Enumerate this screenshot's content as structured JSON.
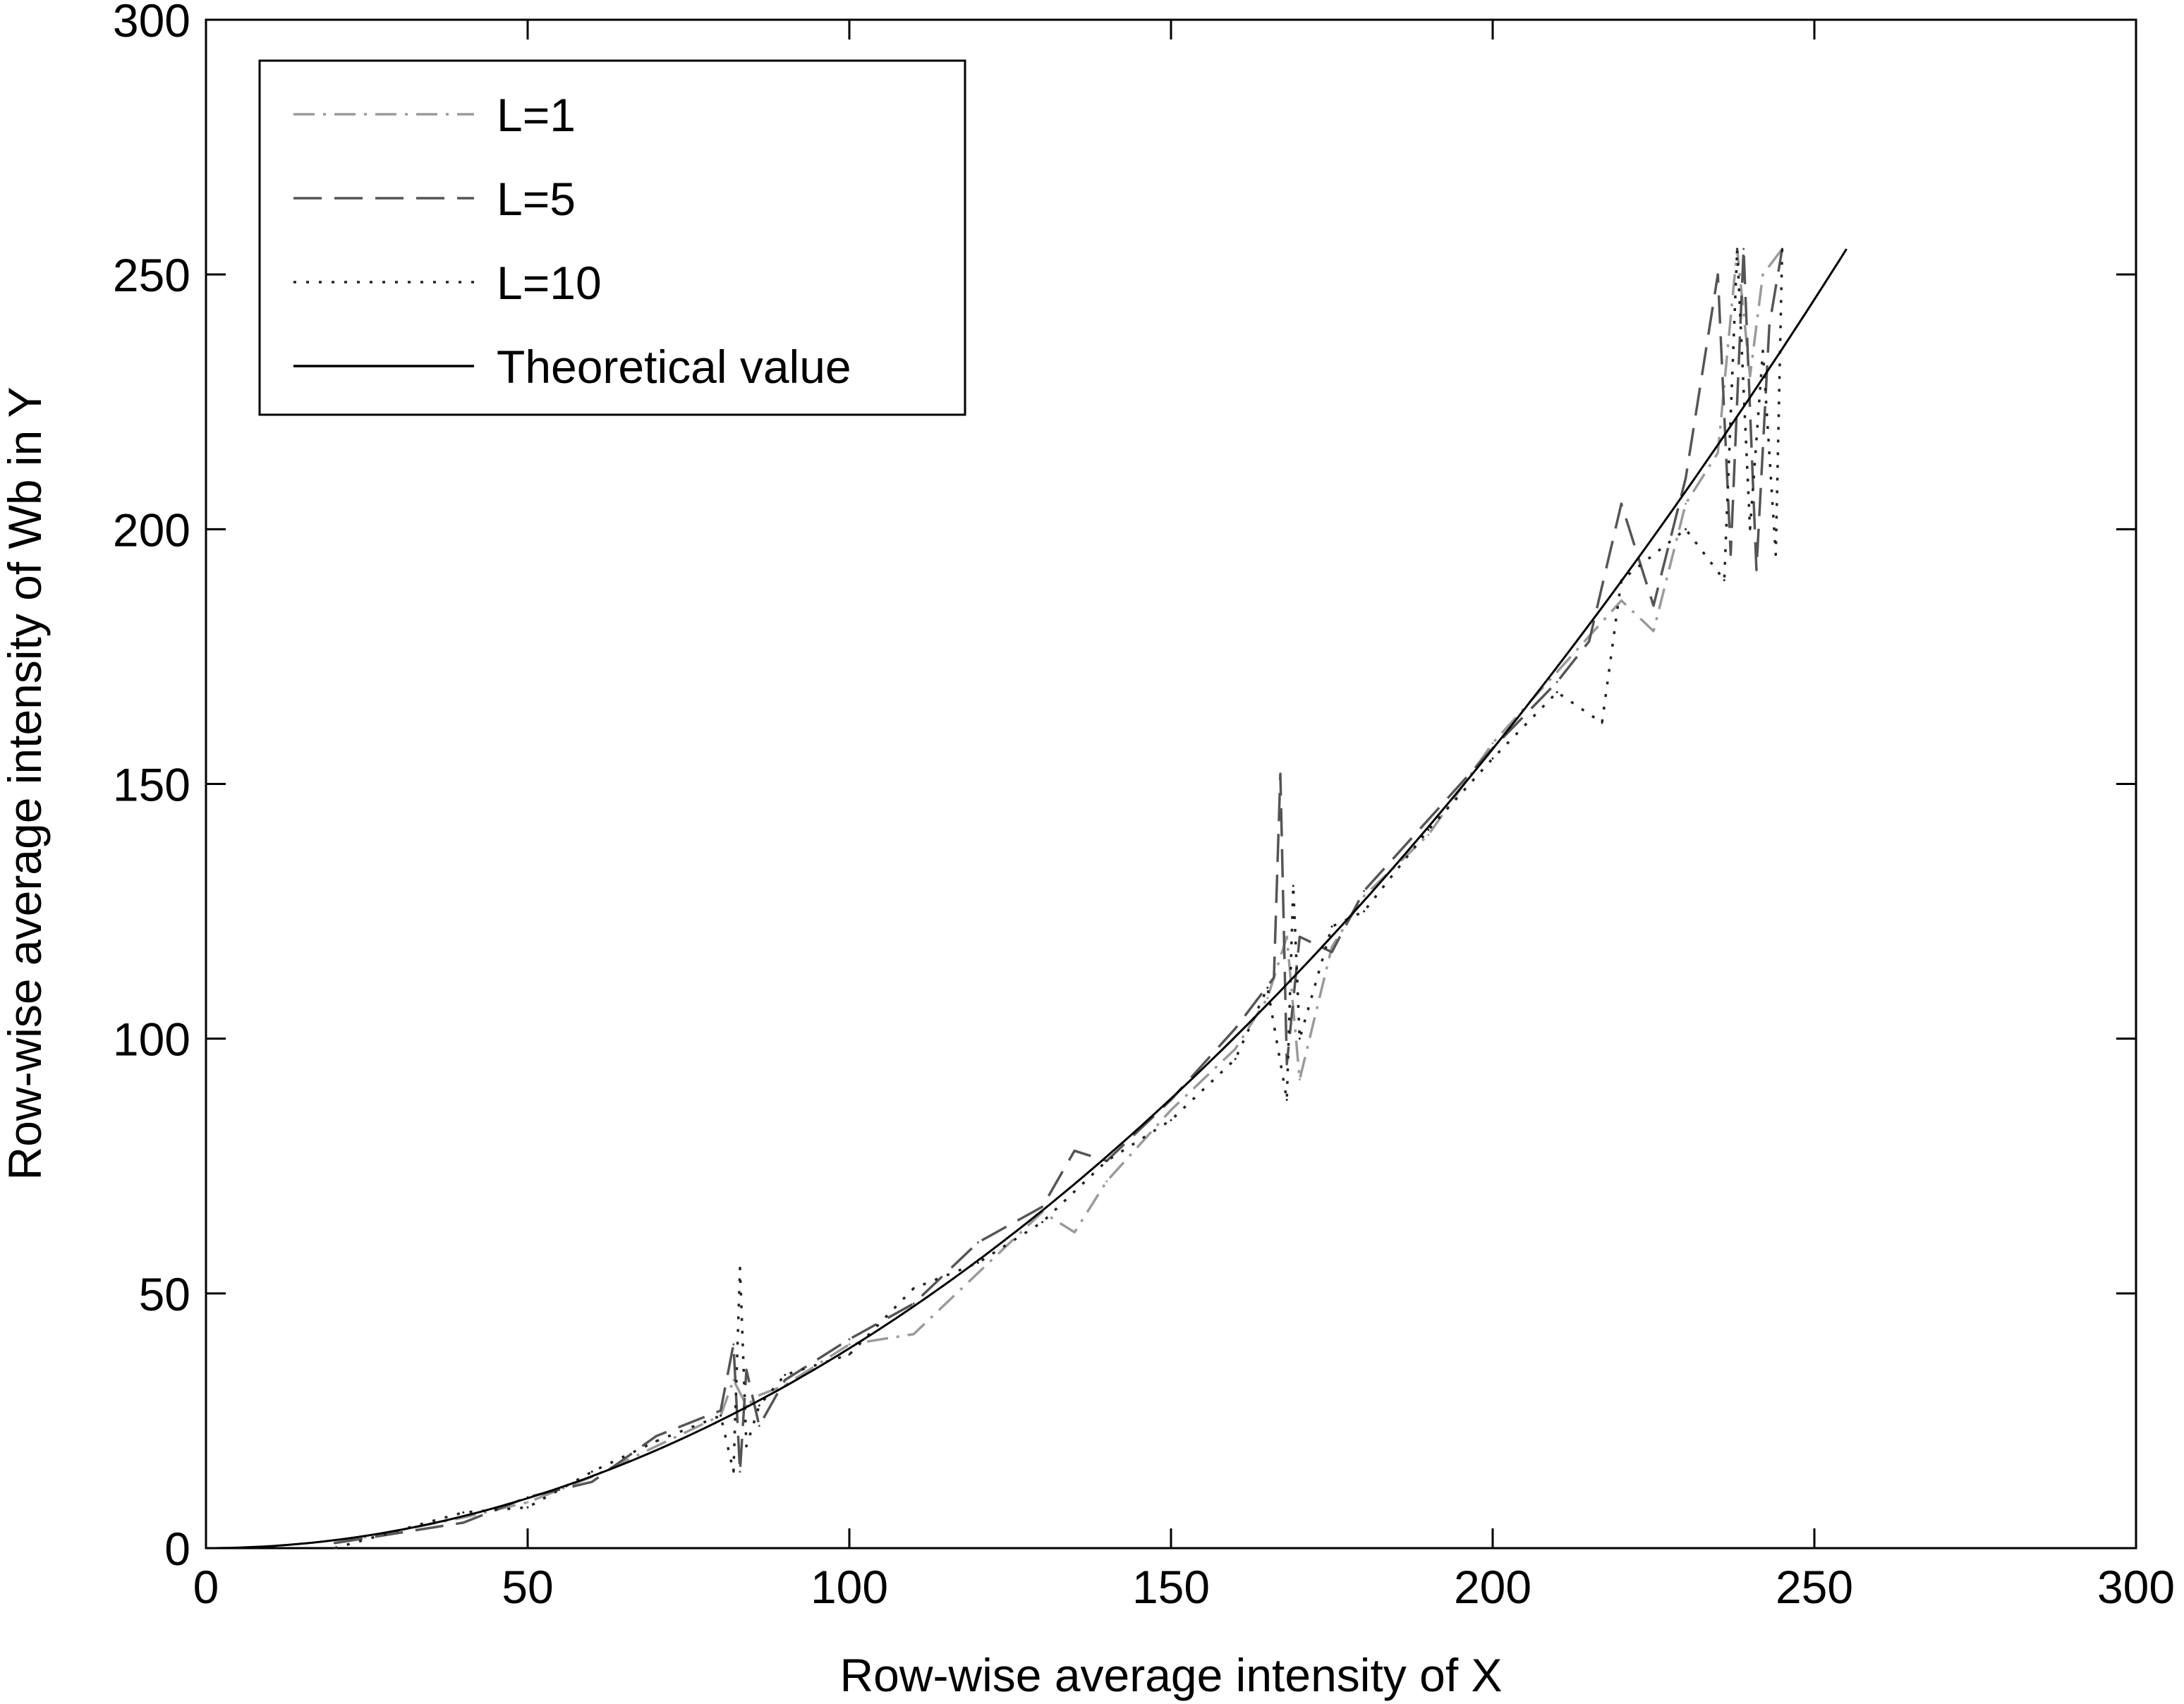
{
  "chart_data": {
    "type": "line",
    "title": "",
    "xlabel": "Row-wise average intensity of X",
    "ylabel": "Row-wise average intensity of Wb in Y",
    "xlim": [
      0,
      300
    ],
    "ylim": [
      0,
      300
    ],
    "xticks": [
      0,
      50,
      100,
      150,
      200,
      250,
      300
    ],
    "yticks": [
      0,
      50,
      100,
      150,
      200,
      250,
      300
    ],
    "xtick_labels": [
      "0",
      "50",
      "100",
      "150",
      "200",
      "250",
      "300"
    ],
    "ytick_labels": [
      "0",
      "50",
      "100",
      "150",
      "200",
      "250",
      "300"
    ],
    "grid": false,
    "legend_position": "top-left",
    "series": [
      {
        "name": "L=1",
        "style": "dash-dot",
        "color": "#9a9a9a",
        "x": [
          20,
          40,
          50,
          60,
          70,
          80,
          82,
          84,
          86,
          90,
          100,
          110,
          120,
          130,
          135,
          140,
          150,
          160,
          165,
          168,
          170,
          175,
          180,
          190,
          200,
          210,
          220,
          225,
          230,
          235,
          238,
          240,
          242,
          245
        ],
        "y": [
          1,
          6,
          9,
          14,
          20,
          26,
          33,
          28,
          30,
          32,
          40,
          42,
          54,
          66,
          62,
          72,
          86,
          98,
          108,
          120,
          92,
          118,
          128,
          140,
          158,
          172,
          186,
          180,
          205,
          215,
          255,
          230,
          250,
          255
        ]
      },
      {
        "name": "L=5",
        "style": "dashed",
        "color": "#555555",
        "x": [
          20,
          40,
          50,
          60,
          70,
          80,
          82,
          83,
          84,
          86,
          90,
          100,
          110,
          120,
          130,
          135,
          140,
          150,
          160,
          166,
          167,
          168,
          170,
          175,
          180,
          190,
          200,
          210,
          215,
          220,
          225,
          230,
          235,
          237,
          239,
          241,
          243,
          245
        ],
        "y": [
          1,
          5,
          10,
          13,
          22,
          27,
          40,
          15,
          35,
          24,
          33,
          41,
          48,
          60,
          67,
          78,
          76,
          88,
          102,
          112,
          152,
          95,
          120,
          117,
          129,
          143,
          157,
          170,
          178,
          205,
          185,
          210,
          250,
          195,
          255,
          192,
          240,
          255
        ]
      },
      {
        "name": "L=10",
        "style": "dotted",
        "color": "#222222",
        "x": [
          20,
          40,
          50,
          60,
          70,
          80,
          82,
          83,
          84,
          86,
          90,
          100,
          110,
          120,
          130,
          140,
          150,
          160,
          165,
          168,
          169,
          170,
          175,
          180,
          190,
          200,
          210,
          217,
          220,
          230,
          236,
          238,
          240,
          242,
          244,
          245
        ],
        "y": [
          0,
          7,
          8,
          15,
          21,
          26,
          15,
          55,
          20,
          28,
          34,
          38,
          51,
          56,
          64,
          76,
          84,
          96,
          110,
          88,
          130,
          100,
          122,
          125,
          141,
          155,
          168,
          162,
          190,
          200,
          190,
          255,
          200,
          235,
          195,
          255
        ]
      },
      {
        "name": "Theoretical value",
        "style": "solid",
        "color": "#000000",
        "function": "y = x^2 / 255",
        "x": [
          0,
          25,
          50,
          75,
          100,
          125,
          150,
          175,
          200,
          225,
          255
        ],
        "y": [
          0,
          2.45,
          9.8,
          22.06,
          39.22,
          61.27,
          88.24,
          120.1,
          156.86,
          198.53,
          255
        ]
      }
    ]
  }
}
